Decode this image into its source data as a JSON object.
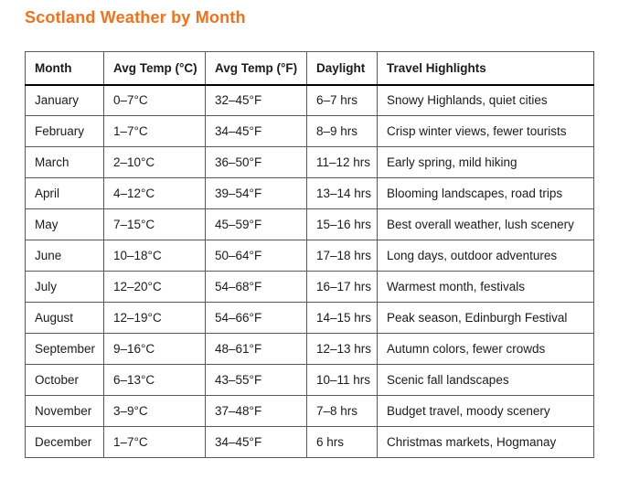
{
  "title": "Scotland Weather by Month",
  "theme": {
    "accent_color": "#f4711c",
    "grid_color": "#595959",
    "header_rule_color": "#000000",
    "text_color": "#1b1b1b"
  },
  "table": {
    "columns": [
      "Month",
      "Avg Temp (°C)",
      "Avg Temp (°F)",
      "Daylight",
      "Travel Highlights"
    ],
    "rows": [
      [
        "January",
        "0–7°C",
        "32–45°F",
        "6–7 hrs",
        "Snowy Highlands, quiet cities"
      ],
      [
        "February",
        "1–7°C",
        "34–45°F",
        "8–9 hrs",
        "Crisp winter views, fewer tourists"
      ],
      [
        "March",
        "2–10°C",
        "36–50°F",
        "11–12 hrs",
        "Early spring, mild hiking"
      ],
      [
        "April",
        "4–12°C",
        "39–54°F",
        "13–14 hrs",
        "Blooming landscapes, road trips"
      ],
      [
        "May",
        "7–15°C",
        "45–59°F",
        "15–16 hrs",
        "Best overall weather, lush scenery"
      ],
      [
        "June",
        "10–18°C",
        "50–64°F",
        "17–18 hrs",
        "Long days, outdoor adventures"
      ],
      [
        "July",
        "12–20°C",
        "54–68°F",
        "16–17 hrs",
        "Warmest month, festivals"
      ],
      [
        "August",
        "12–19°C",
        "54–66°F",
        "14–15 hrs",
        "Peak season, Edinburgh Festival"
      ],
      [
        "September",
        "9–16°C",
        "48–61°F",
        "12–13 hrs",
        "Autumn colors, fewer crowds"
      ],
      [
        "October",
        "6–13°C",
        "43–55°F",
        "10–11 hrs",
        "Scenic fall landscapes"
      ],
      [
        "November",
        "3–9°C",
        "37–48°F",
        "7–8 hrs",
        "Budget travel, moody scenery"
      ],
      [
        "December",
        "1–7°C",
        "34–45°F",
        "6 hrs",
        "Christmas markets, Hogmanay"
      ]
    ]
  }
}
